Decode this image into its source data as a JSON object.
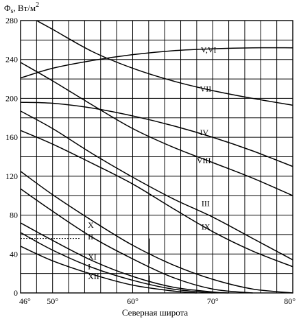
{
  "chart_data": {
    "type": "line",
    "ylabel_main": "Φ",
    "ylabel_sub": "s",
    "ylabel_unit": ", Вт/м",
    "ylabel_sup": "2",
    "xlabel": "Северная широта",
    "xlim": [
      46,
      80
    ],
    "ylim": [
      0,
      280
    ],
    "x_ticks": [
      {
        "value": 46,
        "label": "46°"
      },
      {
        "value": 50,
        "label": "50°"
      },
      {
        "value": 60,
        "label": "60°"
      },
      {
        "value": 70,
        "label": "70°"
      },
      {
        "value": 80,
        "label": "80°"
      }
    ],
    "y_ticks": [
      {
        "value": 0,
        "label": "0"
      },
      {
        "value": 40,
        "label": "40"
      },
      {
        "value": 80,
        "label": "80"
      },
      {
        "value": 120,
        "label": "120"
      },
      {
        "value": 160,
        "label": "160"
      },
      {
        "value": 200,
        "label": "200"
      },
      {
        "value": 240,
        "label": "240"
      },
      {
        "value": 280,
        "label": "280"
      }
    ],
    "x_grid_step": 2,
    "y_grid_step": 20,
    "grid": true,
    "series": [
      {
        "name": "V,VI",
        "x": [
          46,
          50,
          55,
          60,
          65,
          70,
          75,
          80
        ],
        "y": [
          221,
          231,
          239,
          245,
          249,
          251,
          252,
          252
        ]
      },
      {
        "name": "VII",
        "x": [
          48,
          50,
          55,
          60,
          65,
          70,
          75,
          80
        ],
        "y": [
          280,
          271,
          248,
          231,
          218,
          208,
          200,
          193
        ]
      },
      {
        "name": "IV",
        "x": [
          46,
          50,
          55,
          60,
          65,
          70,
          75,
          80
        ],
        "y": [
          196,
          195,
          190,
          182,
          172,
          160,
          146,
          130
        ]
      },
      {
        "name": "VIII",
        "x": [
          46,
          50,
          55,
          60,
          65,
          70,
          75,
          80
        ],
        "y": [
          237,
          218,
          193,
          169,
          150,
          134,
          118,
          100
        ]
      },
      {
        "name": "III",
        "x": [
          46,
          50,
          55,
          60,
          65,
          70,
          75,
          80
        ],
        "y": [
          187,
          169,
          143,
          119,
          97,
          78,
          56,
          34
        ]
      },
      {
        "name": "IX",
        "x": [
          46,
          50,
          55,
          60,
          65,
          70,
          75,
          80
        ],
        "y": [
          167,
          153,
          133,
          112,
          87,
          63,
          43,
          27
        ]
      },
      {
        "name": "II",
        "x": [
          46,
          50,
          55,
          60,
          65,
          70,
          75,
          80
        ],
        "y": [
          125,
          101,
          74,
          49,
          29,
          14,
          4,
          0
        ]
      },
      {
        "name": "X",
        "x": [
          46,
          50,
          55,
          60,
          65,
          70,
          75
        ],
        "y": [
          107,
          84,
          57,
          35,
          16,
          4,
          0
        ]
      },
      {
        "name": "XI",
        "x": [
          46,
          50,
          55,
          60,
          65,
          70,
          72
        ],
        "y": [
          72,
          54,
          33,
          17,
          6,
          1,
          0
        ]
      },
      {
        "name": "I",
        "x": [
          46,
          50,
          55,
          60,
          65,
          70
        ],
        "y": [
          62,
          44,
          26,
          13,
          4,
          0
        ]
      },
      {
        "name": "XII",
        "x": [
          46,
          50,
          55,
          60,
          65,
          68
        ],
        "y": [
          48,
          33,
          19,
          8,
          2,
          0
        ]
      }
    ],
    "annotations": [
      {
        "text": "V,VI",
        "x": 68.5,
        "y": 250
      },
      {
        "text": "VII",
        "x": 68.4,
        "y": 210
      },
      {
        "text": "IV",
        "x": 68.4,
        "y": 165
      },
      {
        "text": "VIII",
        "x": 68.0,
        "y": 136
      },
      {
        "text": "III",
        "x": 68.6,
        "y": 92
      },
      {
        "text": "IX",
        "x": 68.6,
        "y": 68
      },
      {
        "text": "X",
        "x": 54.4,
        "y": 70
      },
      {
        "text": "II",
        "x": 54.4,
        "y": 58
      },
      {
        "text": "XI",
        "x": 54.4,
        "y": 37
      },
      {
        "text": "I",
        "x": 54.4,
        "y": 27
      },
      {
        "text": "XII",
        "x": 54.4,
        "y": 17
      }
    ]
  }
}
